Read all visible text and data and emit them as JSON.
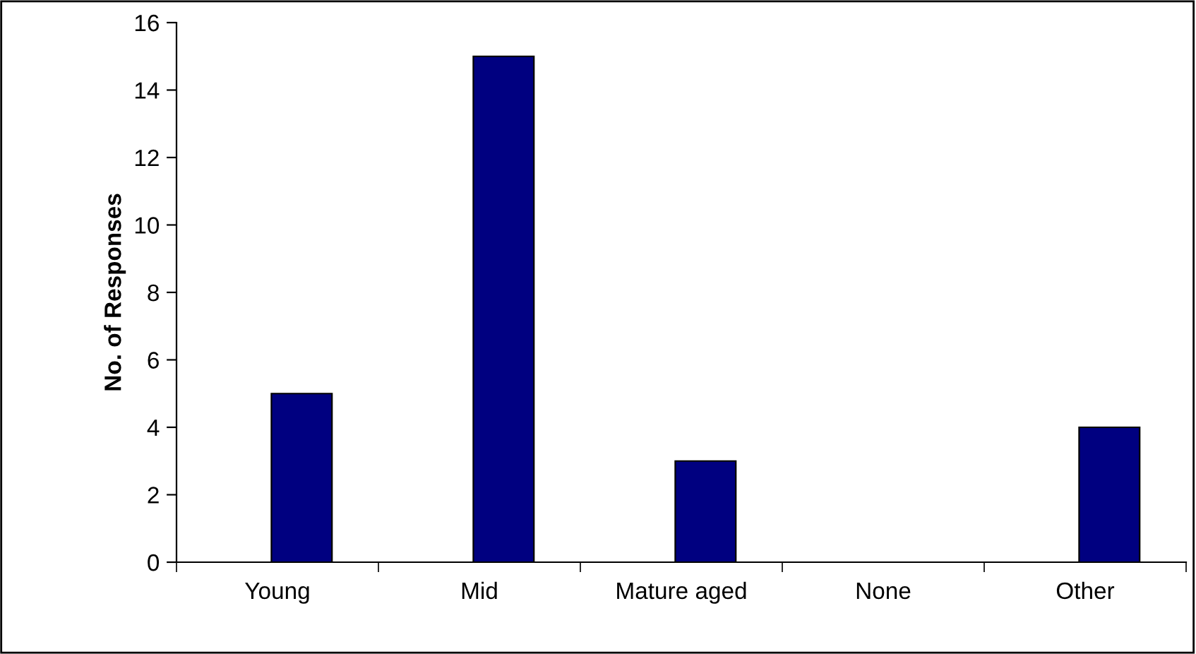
{
  "chart_data": {
    "type": "bar",
    "ylabel": "No. of Responses",
    "categories": [
      "Young",
      "Mid",
      "Mature aged",
      "None",
      "Other"
    ],
    "values": [
      5,
      15,
      3,
      0,
      4
    ],
    "color": "#000080",
    "ylim": [
      0,
      16
    ],
    "yticks": [
      0,
      2,
      4,
      6,
      8,
      10,
      12,
      14,
      16
    ],
    "grid": false,
    "legend": false
  }
}
